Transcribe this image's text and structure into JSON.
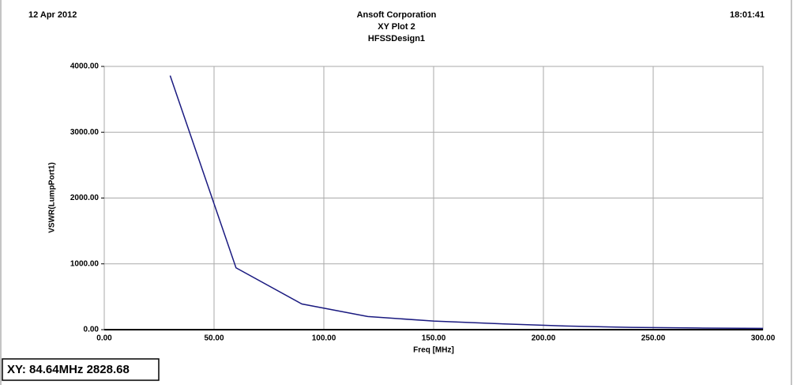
{
  "chart_data": {
    "type": "line",
    "title": "Ansoft Corporation",
    "subtitle": "XY Plot 2",
    "design": "HFSSDesign1",
    "date": "12 Apr 2012",
    "time": "18:01:41",
    "x_label": "Freq [MHz]",
    "y_label": "VSWR(LumpPort1)",
    "status": "XY: 84.64MHz 2828.68",
    "x": [
      30,
      60,
      90,
      120,
      150,
      180,
      210,
      240,
      270,
      300
    ],
    "series": [
      {
        "name": "VSWR(LumpPort1)",
        "color": "#1a1a80",
        "values": [
          3860,
          940,
          390,
          200,
          130,
          90,
          55,
          35,
          25,
          20
        ]
      }
    ],
    "xlim": [
      0,
      300
    ],
    "ylim": [
      0,
      4000
    ],
    "xticks": [
      {
        "value": 0,
        "label": "0.00"
      },
      {
        "value": 50,
        "label": "50.00"
      },
      {
        "value": 100,
        "label": "100.00"
      },
      {
        "value": 150,
        "label": "150.00"
      },
      {
        "value": 200,
        "label": "200.00"
      },
      {
        "value": 250,
        "label": "250.00"
      },
      {
        "value": 300,
        "label": "300.00"
      }
    ],
    "yticks": [
      {
        "value": 0,
        "label": "0.00"
      },
      {
        "value": 1000,
        "label": "1000.00"
      },
      {
        "value": 2000,
        "label": "2000.00"
      },
      {
        "value": 3000,
        "label": "3000.00"
      },
      {
        "value": 4000,
        "label": "4000.00"
      }
    ],
    "grid": true
  }
}
